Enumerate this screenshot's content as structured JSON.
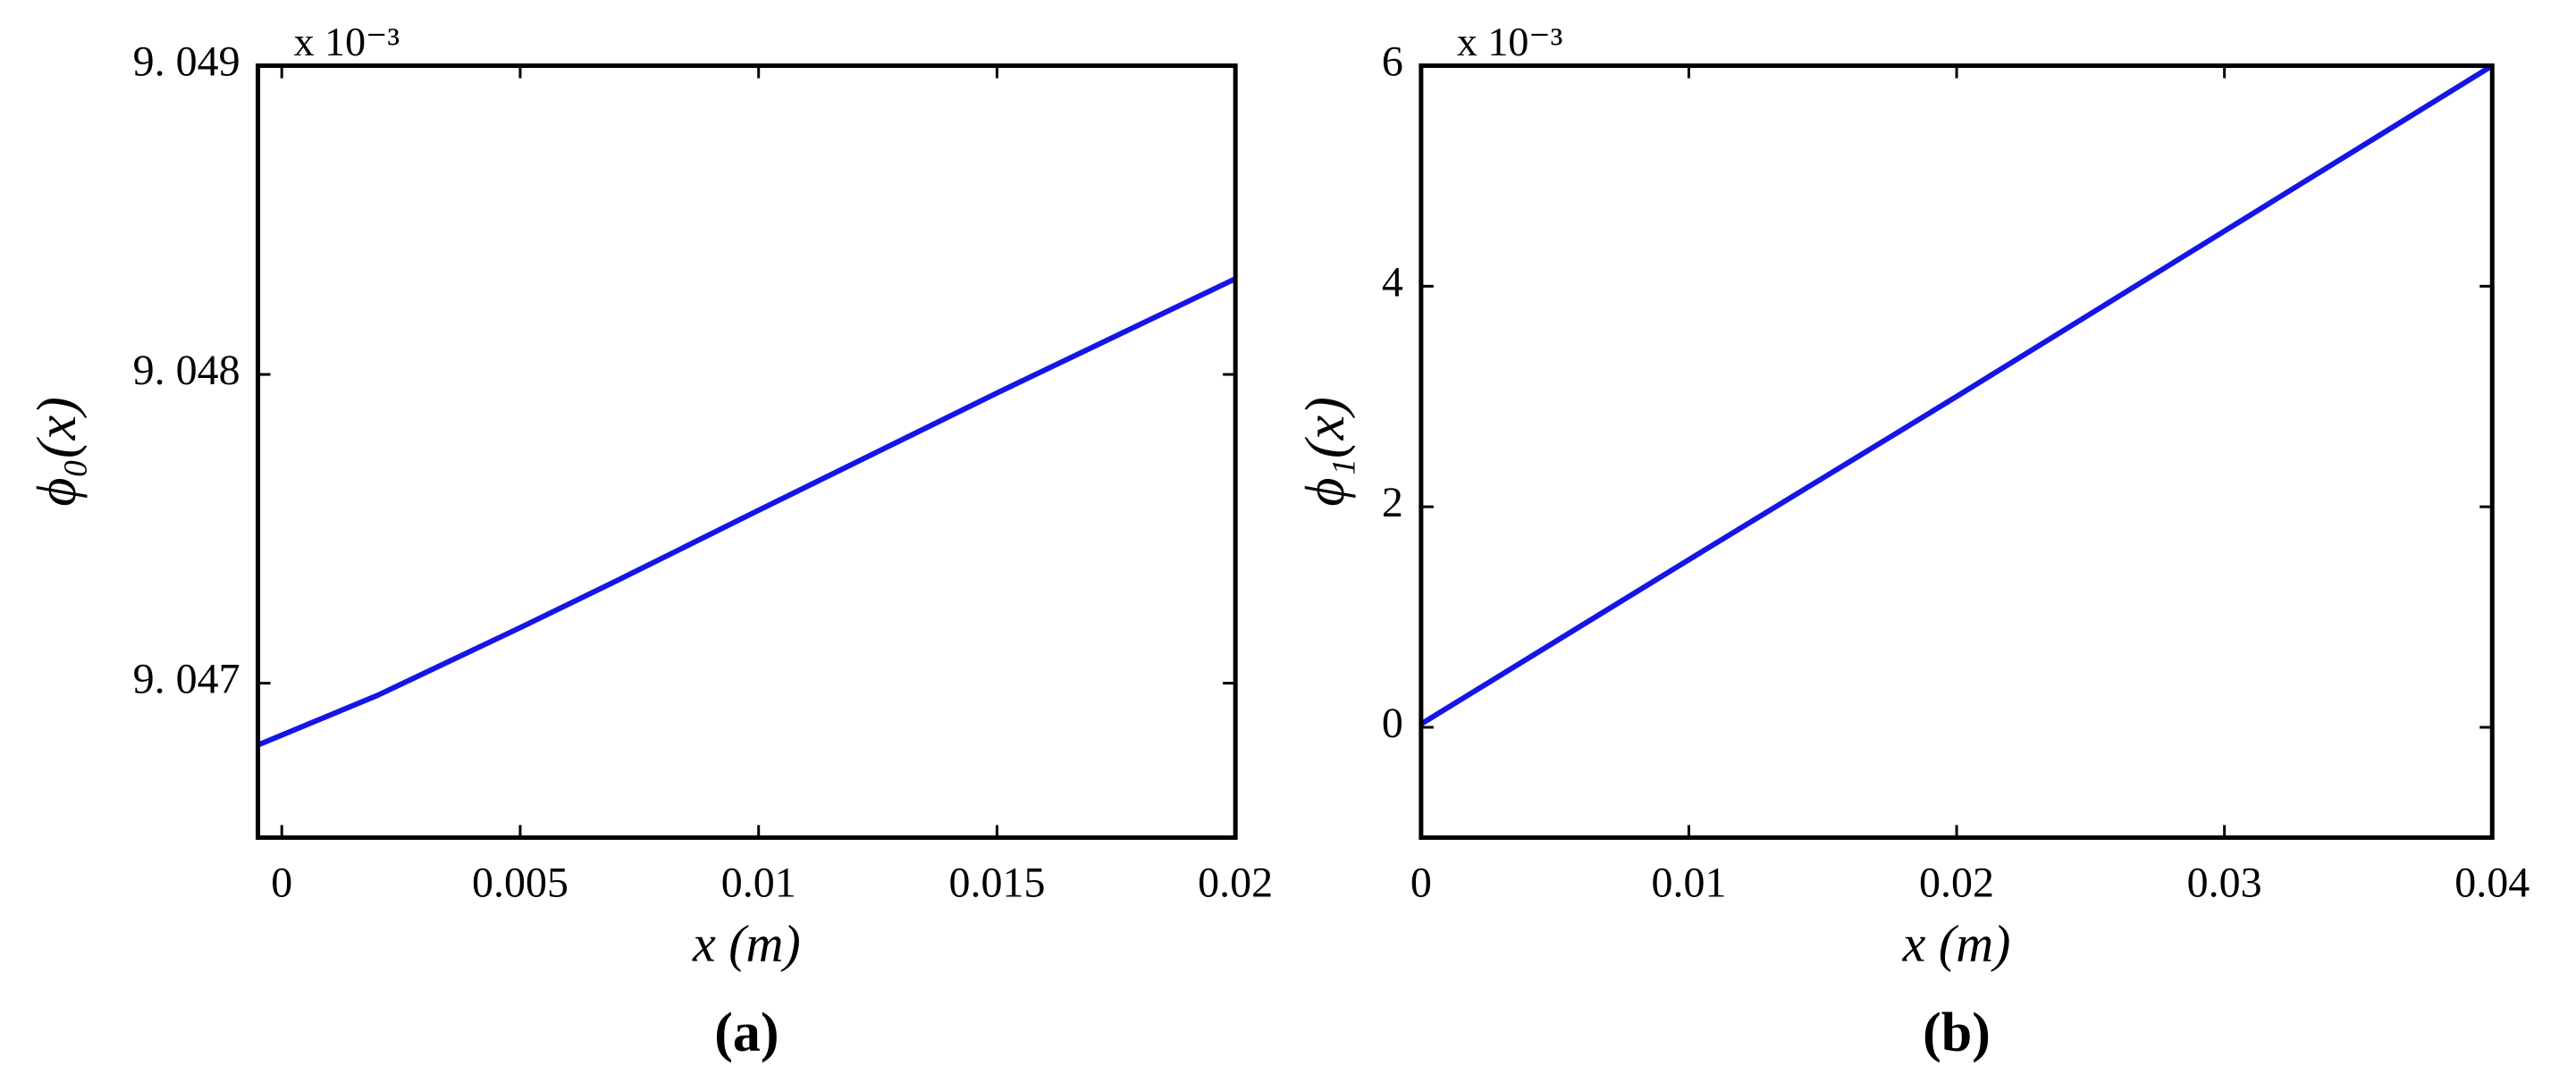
{
  "chart_data": [
    {
      "type": "line",
      "panel": "(a)",
      "xlabel": "x (m)",
      "ylabel": "ϕ₀(x)",
      "multiplier": "x 10⁻³",
      "x": [
        -0.0005,
        0.002,
        0.005,
        0.007,
        0.01,
        0.015,
        0.02
      ],
      "series": [
        {
          "color": "#1515e6",
          "values": [
            9.0468,
            9.04696,
            9.04718,
            9.04733,
            9.04756,
            9.04794,
            9.04831
          ]
        }
      ],
      "xlim": [
        -0.0005,
        0.02
      ],
      "ylim": [
        9.0465,
        9.049
      ],
      "xticks": [
        0,
        0.005,
        0.01,
        0.015,
        0.02
      ],
      "yticks": [
        {
          "value": 9.047,
          "label": "9. 047"
        },
        {
          "value": 9.048,
          "label": "9. 048"
        },
        {
          "value": 9.049,
          "label": "9. 049"
        }
      ]
    },
    {
      "type": "line",
      "panel": "(b)",
      "xlabel": "x (m)",
      "ylabel": "ϕ₁(x)",
      "multiplier": "x 10⁻³",
      "x": [
        0,
        0.01,
        0.02,
        0.03,
        0.04
      ],
      "series": [
        {
          "color": "#1515e6",
          "values": [
            0.03,
            1.52,
            3.0,
            4.5,
            6.0
          ]
        }
      ],
      "xlim": [
        0,
        0.04
      ],
      "ylim": [
        -1,
        6
      ],
      "xticks": [
        0,
        0.01,
        0.02,
        0.03,
        0.04
      ],
      "yticks": [
        0,
        2,
        4,
        6
      ]
    }
  ]
}
